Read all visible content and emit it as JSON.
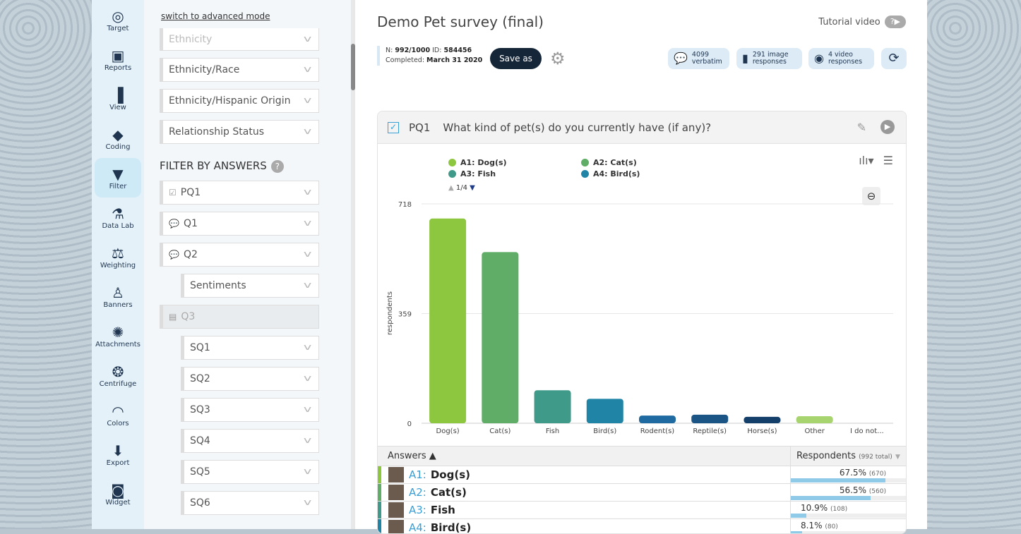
{
  "nav": [
    {
      "label": "Target",
      "icon": "target-icon",
      "g": "◎"
    },
    {
      "label": "Reports",
      "icon": "presentation-icon",
      "g": "▣"
    },
    {
      "label": "View",
      "icon": "bar-chart-icon",
      "g": "▐"
    },
    {
      "label": "Coding",
      "icon": "tags-icon",
      "g": "◆"
    },
    {
      "label": "Filter",
      "icon": "funnel-icon",
      "g": "▼",
      "active": true
    },
    {
      "label": "Data Lab",
      "icon": "flask-icon",
      "g": "⚗"
    },
    {
      "label": "Weighting",
      "icon": "scale-icon",
      "g": "⚖"
    },
    {
      "label": "Banners",
      "icon": "microscope-icon",
      "g": "♙"
    },
    {
      "label": "Attachments",
      "icon": "sun-icon",
      "g": "✺"
    },
    {
      "label": "Centrifuge",
      "icon": "centrifuge-icon",
      "g": "❂"
    },
    {
      "label": "Colors",
      "icon": "rainbow-icon",
      "g": "◠"
    },
    {
      "label": "Export",
      "icon": "download-icon",
      "g": "⬇"
    },
    {
      "label": "Widget",
      "icon": "widget-icon",
      "g": "◙"
    }
  ],
  "filter": {
    "advanced_link": "switch to advanced mode",
    "demographics": [
      "Ethnicity",
      "Ethnicity/Race",
      "Ethnicity/Hispanic Origin",
      "Relationship Status"
    ],
    "answers_title": "FILTER BY ANSWERS",
    "help": "?",
    "answers": [
      {
        "label": "PQ1",
        "icon": "☑"
      },
      {
        "label": "Q1",
        "icon": "💬"
      },
      {
        "label": "Q2",
        "icon": "💬"
      },
      {
        "label": "Sentiments",
        "sub": true
      },
      {
        "label": "Q3",
        "icon": "▤",
        "disabled": true
      },
      {
        "label": "SQ1",
        "sub": true
      },
      {
        "label": "SQ2",
        "sub": true
      },
      {
        "label": "SQ3",
        "sub": true
      },
      {
        "label": "SQ4",
        "sub": true
      },
      {
        "label": "SQ5",
        "sub": true
      },
      {
        "label": "SQ6",
        "sub": true
      }
    ]
  },
  "header": {
    "title": "Demo Pet survey (final)",
    "tutorial": "Tutorial video",
    "tutorial_icon": "?▶",
    "n_label": "N:",
    "n_value": "992/1000",
    "id_label": "ID:",
    "id_value": "584456",
    "completed_label": "Completed:",
    "completed_value": "March 31 2020",
    "save_as": "Save as",
    "pills": [
      {
        "l1": "4099",
        "l2": "verbatim",
        "icon": "speech-bubble-icon",
        "g": "💬"
      },
      {
        "l1": "291 image",
        "l2": "responses",
        "icon": "phone-image-icon",
        "g": "▮"
      },
      {
        "l1": "4 video",
        "l2": "responses",
        "icon": "webcam-icon",
        "g": "◉"
      }
    ]
  },
  "question": {
    "code": "PQ1",
    "text": "What kind of pet(s) do you currently have (if any)?",
    "pager": "1/4"
  },
  "colors": {
    "accent": "#3a9fd5",
    "navy": "#152639"
  },
  "chart_data": {
    "type": "bar",
    "ylabel": "respondents",
    "ylim": [
      0,
      718
    ],
    "yticks": [
      0,
      359,
      718
    ],
    "categories": [
      "Dog(s)",
      "Cat(s)",
      "Fish",
      "Bird(s)",
      "Rodent(s)",
      "Reptile(s)",
      "Horse(s)",
      "Other",
      "I do not..."
    ],
    "values": [
      670,
      560,
      108,
      80,
      25,
      28,
      21,
      23,
      0
    ],
    "colors": [
      "#8dc63f",
      "#5fad66",
      "#3f9a89",
      "#1f84a6",
      "#1f6aa0",
      "#1a5585",
      "#143f6b",
      "#a8d46f",
      "#cccccc"
    ],
    "legend": [
      {
        "label": "A1: Dog(s)",
        "color": "#8dc63f"
      },
      {
        "label": "A2: Cat(s)",
        "color": "#5fad66"
      },
      {
        "label": "A3: Fish",
        "color": "#3f9a89"
      },
      {
        "label": "A4: Bird(s)",
        "color": "#1f84a6"
      }
    ],
    "grid": true
  },
  "table": {
    "answers_header": "Answers ▲",
    "resp_header": "Respondents",
    "resp_total": "(992 total)",
    "rows": [
      {
        "code": "A1:",
        "label": "Dog(s)",
        "pct": "67.5%",
        "n": "(670)",
        "frac": 0.675,
        "color": "#8dc63f"
      },
      {
        "code": "A2:",
        "label": "Cat(s)",
        "pct": "56.5%",
        "n": "(560)",
        "frac": 0.565,
        "color": "#5fad66"
      },
      {
        "code": "A3:",
        "label": "Fish",
        "pct": "10.9%",
        "n": "(108)",
        "frac": 0.109,
        "color": "#3f9a89"
      },
      {
        "code": "A4:",
        "label": "Bird(s)",
        "pct": "8.1%",
        "n": "(80)",
        "frac": 0.081,
        "color": "#1f84a6"
      }
    ]
  }
}
